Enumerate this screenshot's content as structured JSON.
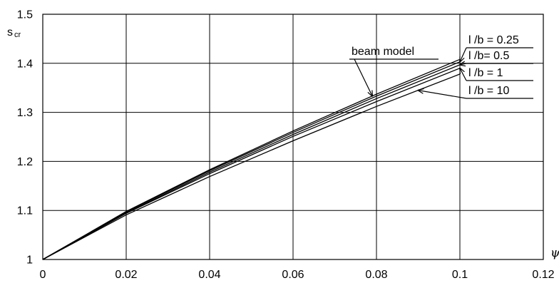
{
  "chart_data": {
    "type": "line",
    "title": "",
    "xlabel": "ψ",
    "ylabel": {
      "main": "s",
      "sub": "cr"
    },
    "xlim": [
      0,
      0.12
    ],
    "ylim": [
      1,
      1.5
    ],
    "xticks": [
      0,
      0.02,
      0.04,
      0.06,
      0.08,
      0.1,
      0.12
    ],
    "xtick_labels": [
      "0",
      "0.02",
      "0.04",
      "0.06",
      "0.08",
      "0.1",
      "0.12"
    ],
    "yticks": [
      1,
      1.1,
      1.2,
      1.3,
      1.4,
      1.5
    ],
    "ytick_labels": [
      "1",
      "1.1",
      "1.2",
      "1.3",
      "1.4",
      "1.5"
    ],
    "grid": true,
    "legend": "none",
    "series": [
      {
        "label": "beam model",
        "x": [
          0,
          0.02,
          0.04,
          0.06,
          0.08,
          0.1
        ],
        "y": [
          1,
          1.098,
          1.183,
          1.262,
          1.337,
          1.408
        ]
      },
      {
        "label": "l /b = 0.25",
        "x": [
          0,
          0.02,
          0.04,
          0.06,
          0.08,
          0.1
        ],
        "y": [
          1,
          1.097,
          1.181,
          1.259,
          1.333,
          1.403
        ]
      },
      {
        "label": "l /b= 0.5",
        "x": [
          0,
          0.02,
          0.04,
          0.06,
          0.08,
          0.1
        ],
        "y": [
          1,
          1.095,
          1.178,
          1.255,
          1.328,
          1.397
        ]
      },
      {
        "label": "l /b = 1",
        "x": [
          0,
          0.02,
          0.04,
          0.06,
          0.08,
          0.1
        ],
        "y": [
          1,
          1.094,
          1.175,
          1.251,
          1.322,
          1.39
        ]
      },
      {
        "label": "l /b = 10",
        "x": [
          0,
          0.02,
          0.04,
          0.06,
          0.08,
          0.1
        ],
        "y": [
          1,
          1.091,
          1.169,
          1.242,
          1.312,
          1.378
        ]
      }
    ],
    "annotations": [
      {
        "text": "beam model",
        "series": 0,
        "arrow_at_x": 0.079
      },
      {
        "text": "l /b = 0.25",
        "series": 1,
        "arrow_at_x": 0.1
      },
      {
        "text": "l /b= 0.5",
        "series": 2,
        "arrow_at_x": 0.1
      },
      {
        "text": "l /b = 1",
        "series": 3,
        "arrow_at_x": 0.1
      },
      {
        "text": "l /b = 10",
        "series": 4,
        "arrow_at_x": 0.09
      }
    ]
  }
}
